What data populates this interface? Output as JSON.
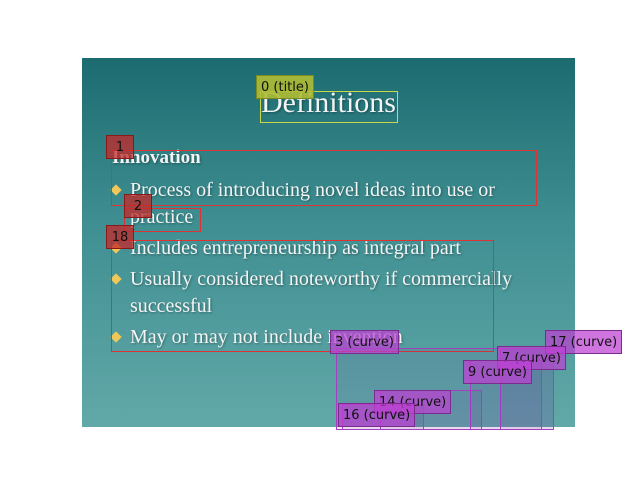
{
  "slide": {
    "title": "Definitions",
    "section_title": "Innovation",
    "bullets": [
      "Process of introducing novel ideas into use or practice",
      "Includes entrepreneurship as integral part",
      "Usually considered noteworthy if commercially successful",
      "May or may not include invention"
    ]
  },
  "annotations": {
    "title_tag": "0 (title)",
    "box_tags": [
      "1",
      "2",
      "18"
    ],
    "curve_tags": [
      "17 (curve)",
      "7 (curve)",
      "9 (curve)",
      "3 (curve)",
      "14 (curve)",
      "16 (curve)"
    ]
  },
  "colors": {
    "slide_top": "#1b6b70",
    "slide_bottom": "#62a8a8",
    "bullet_diamond": "#f0c85a",
    "box_red": "#d33333",
    "title_box": "#c8d84a",
    "curve_purple": "#be40d2"
  }
}
